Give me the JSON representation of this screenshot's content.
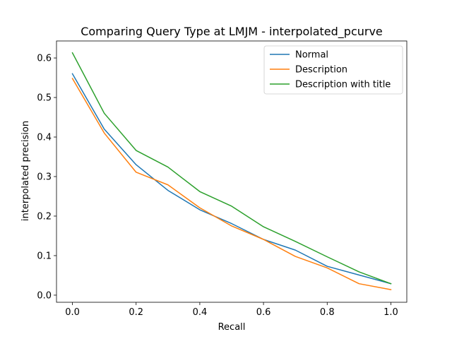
{
  "chart_data": {
    "type": "line",
    "title": "Comparing Query Type at LMJM - interpolated_pcurve",
    "xlabel": "Recall",
    "ylabel": "interpolated precision",
    "xlim": [
      -0.05,
      1.05
    ],
    "ylim": [
      -0.018,
      0.643
    ],
    "xticks": [
      0.0,
      0.2,
      0.4,
      0.6,
      0.8,
      1.0
    ],
    "xtick_labels": [
      "0.0",
      "0.2",
      "0.4",
      "0.6",
      "0.8",
      "1.0"
    ],
    "yticks": [
      0.0,
      0.1,
      0.2,
      0.3,
      0.4,
      0.5,
      0.6
    ],
    "ytick_labels": [
      "0.0",
      "0.1",
      "0.2",
      "0.3",
      "0.4",
      "0.5",
      "0.6"
    ],
    "grid": false,
    "legend_position": "top-right",
    "x": [
      0.0,
      0.1,
      0.2,
      0.3,
      0.4,
      0.5,
      0.6,
      0.7,
      0.8,
      0.9,
      1.0
    ],
    "series": [
      {
        "name": "Normal",
        "color": "#1f77b4",
        "values": [
          0.56,
          0.42,
          0.33,
          0.265,
          0.216,
          0.181,
          0.141,
          0.114,
          0.073,
          0.051,
          0.029
        ]
      },
      {
        "name": "Description",
        "color": "#ff7f0e",
        "values": [
          0.548,
          0.41,
          0.311,
          0.279,
          0.221,
          0.175,
          0.141,
          0.098,
          0.069,
          0.029,
          0.014
        ]
      },
      {
        "name": "Description with title",
        "color": "#2ca02c",
        "values": [
          0.613,
          0.46,
          0.366,
          0.324,
          0.262,
          0.225,
          0.173,
          0.136,
          0.097,
          0.059,
          0.029
        ]
      }
    ]
  }
}
